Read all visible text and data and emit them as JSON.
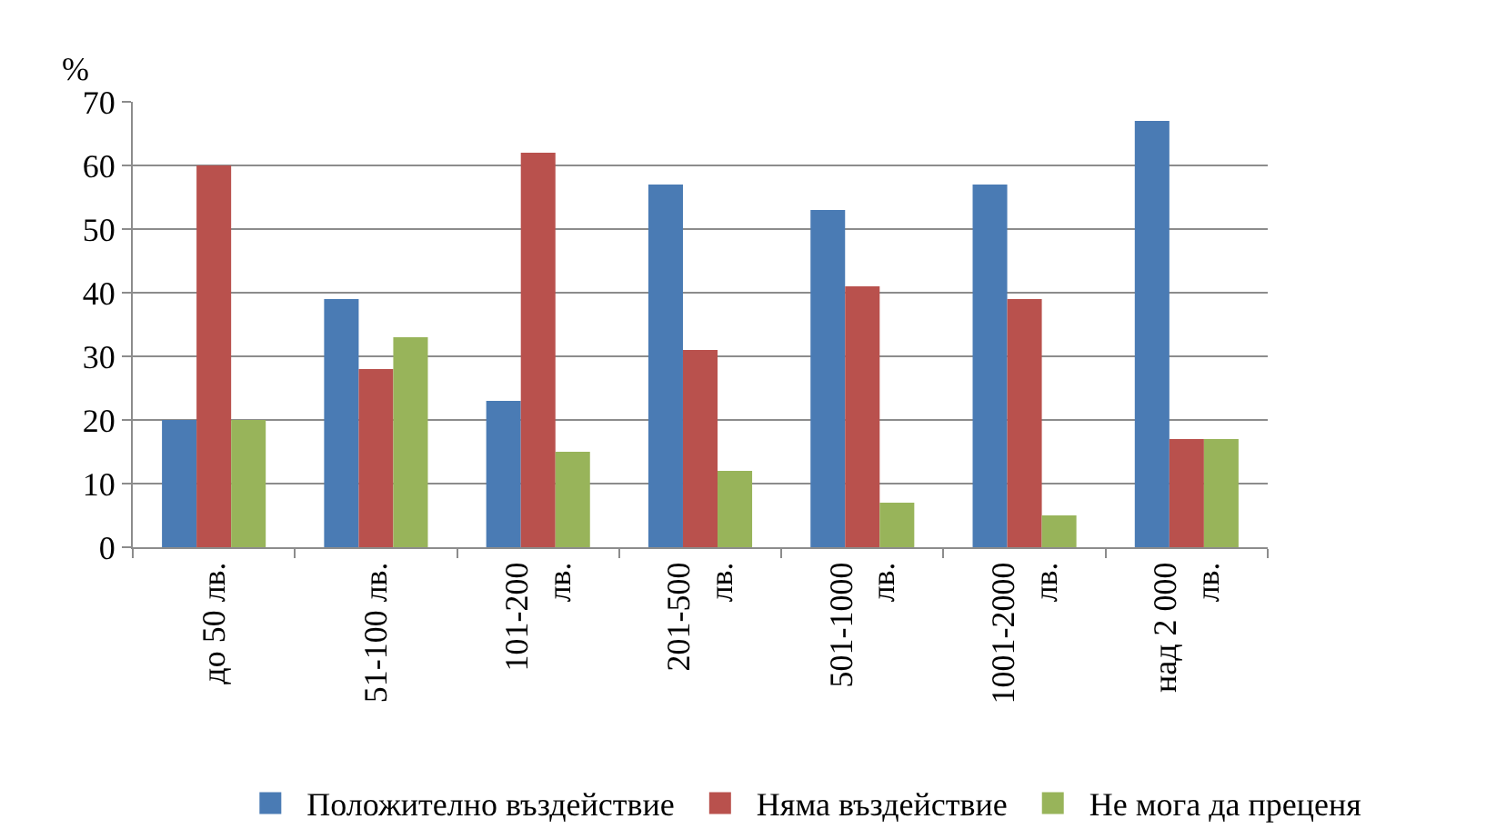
{
  "chart_data": {
    "type": "bar",
    "ylabel": "%",
    "categories": [
      "до 50 лв.",
      "51-100 лв.",
      "101-200 лв.",
      "201-500 лв.",
      "501-1000 лв.",
      "1001-2000 лв.",
      "над 2 000 лв."
    ],
    "series": [
      {
        "name": "Положително въздействие",
        "color": "#4a7bb4",
        "values": [
          20,
          39,
          23,
          57,
          53,
          57,
          67
        ]
      },
      {
        "name": "Няма въздействие",
        "color": "#b9514d",
        "values": [
          60,
          28,
          62,
          31,
          41,
          39,
          17
        ]
      },
      {
        "name": "Не мога да преценя",
        "color": "#98b45a",
        "values": [
          20,
          33,
          15,
          12,
          7,
          5,
          17
        ]
      }
    ],
    "ylim": [
      0,
      70
    ],
    "yticks": [
      0,
      10,
      20,
      30,
      40,
      50,
      60,
      70
    ],
    "grid": "y",
    "legend": "bottom"
  }
}
